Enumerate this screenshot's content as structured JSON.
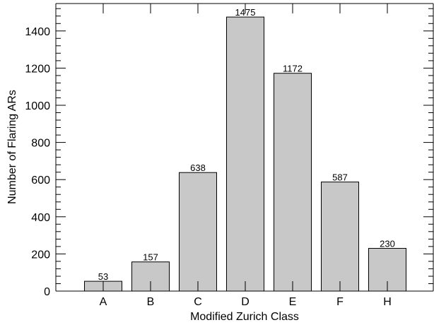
{
  "chart_data": {
    "type": "bar",
    "title": "",
    "xlabel": "Modified Zurich Class",
    "ylabel": "Number of Flaring ARs",
    "categories": [
      "A",
      "B",
      "C",
      "D",
      "E",
      "F",
      "H"
    ],
    "values": [
      53,
      157,
      638,
      1475,
      1172,
      587,
      230
    ],
    "data_labels": [
      "53",
      "157",
      "638",
      "1475",
      "1172",
      "587",
      "230"
    ],
    "ylim": [
      0,
      1550
    ],
    "yticks": [
      0,
      200,
      400,
      600,
      800,
      1000,
      1200,
      1400
    ],
    "ytick_labels": [
      "0",
      "200",
      "400",
      "600",
      "800",
      "1000",
      "1200",
      "1400"
    ],
    "bar_color": "#c8c8c8",
    "edge_color": "#000000",
    "grid": false,
    "legend": "none"
  }
}
